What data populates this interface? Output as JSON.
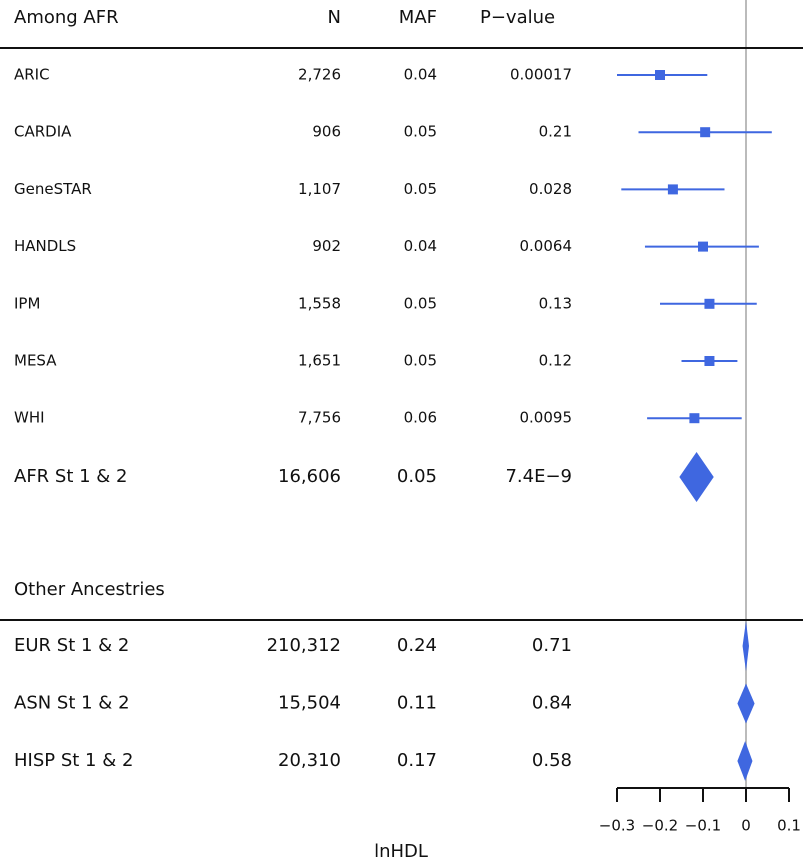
{
  "chart_data": {
    "type": "forest",
    "columns": [
      "N",
      "MAF",
      "P−value"
    ],
    "xlabel": "lnHDL",
    "xlim": [
      -0.3,
      0.1
    ],
    "xticks": [
      {
        "value": -0.3,
        "label": "−0.3"
      },
      {
        "value": -0.2,
        "label": "−0.2"
      },
      {
        "value": -0.1,
        "label": "−0.1"
      },
      0,
      0.1
    ],
    "ref_line": 0,
    "color": "#3f67e0",
    "groups": [
      {
        "title": "Among AFR",
        "rows": [
          {
            "label": "ARIC",
            "cells": [
              "2,726",
              "0.04",
              "0.00017"
            ],
            "estimate": -0.2,
            "lower": -0.3,
            "upper": -0.09
          },
          {
            "label": "CARDIA",
            "cells": [
              "906",
              "0.05",
              "0.21"
            ],
            "estimate": -0.095,
            "lower": -0.25,
            "upper": 0.06
          },
          {
            "label": "GeneSTAR",
            "cells": [
              "1,107",
              "0.05",
              "0.028"
            ],
            "estimate": -0.17,
            "lower": -0.29,
            "upper": -0.05
          },
          {
            "label": "HANDLS",
            "cells": [
              "902",
              "0.04",
              "0.0064"
            ],
            "estimate": -0.1,
            "lower": -0.235,
            "upper": 0.03
          },
          {
            "label": "IPM",
            "cells": [
              "1,558",
              "0.05",
              "0.13"
            ],
            "estimate": -0.085,
            "lower": -0.2,
            "upper": 0.025
          },
          {
            "label": "MESA",
            "cells": [
              "1,651",
              "0.05",
              "0.12"
            ],
            "estimate": -0.085,
            "lower": -0.15,
            "upper": -0.02
          },
          {
            "label": "WHI",
            "cells": [
              "7,756",
              "0.06",
              "0.0095"
            ],
            "estimate": -0.12,
            "lower": -0.23,
            "upper": -0.01
          },
          {
            "label": "AFR St 1 & 2",
            "cells": [
              "16,606",
              "0.05",
              "7.4E−9"
            ],
            "estimate": -0.115,
            "lower": -0.155,
            "upper": -0.075,
            "summary": true
          }
        ]
      },
      {
        "title": "Other Ancestries",
        "rows": [
          {
            "label": "EUR St 1 & 2",
            "cells": [
              "210,312",
              "0.24",
              "0.71"
            ],
            "estimate": 0.0,
            "lower": -0.008,
            "upper": 0.007,
            "summary": true
          },
          {
            "label": "ASN St 1 & 2",
            "cells": [
              "15,504",
              "0.11",
              "0.84"
            ],
            "estimate": 0.0,
            "lower": -0.02,
            "upper": 0.02,
            "summary": true
          },
          {
            "label": "HISP St 1 & 2",
            "cells": [
              "20,310",
              "0.17",
              "0.58"
            ],
            "estimate": -0.002,
            "lower": -0.02,
            "upper": 0.015,
            "summary": true
          }
        ]
      }
    ]
  }
}
